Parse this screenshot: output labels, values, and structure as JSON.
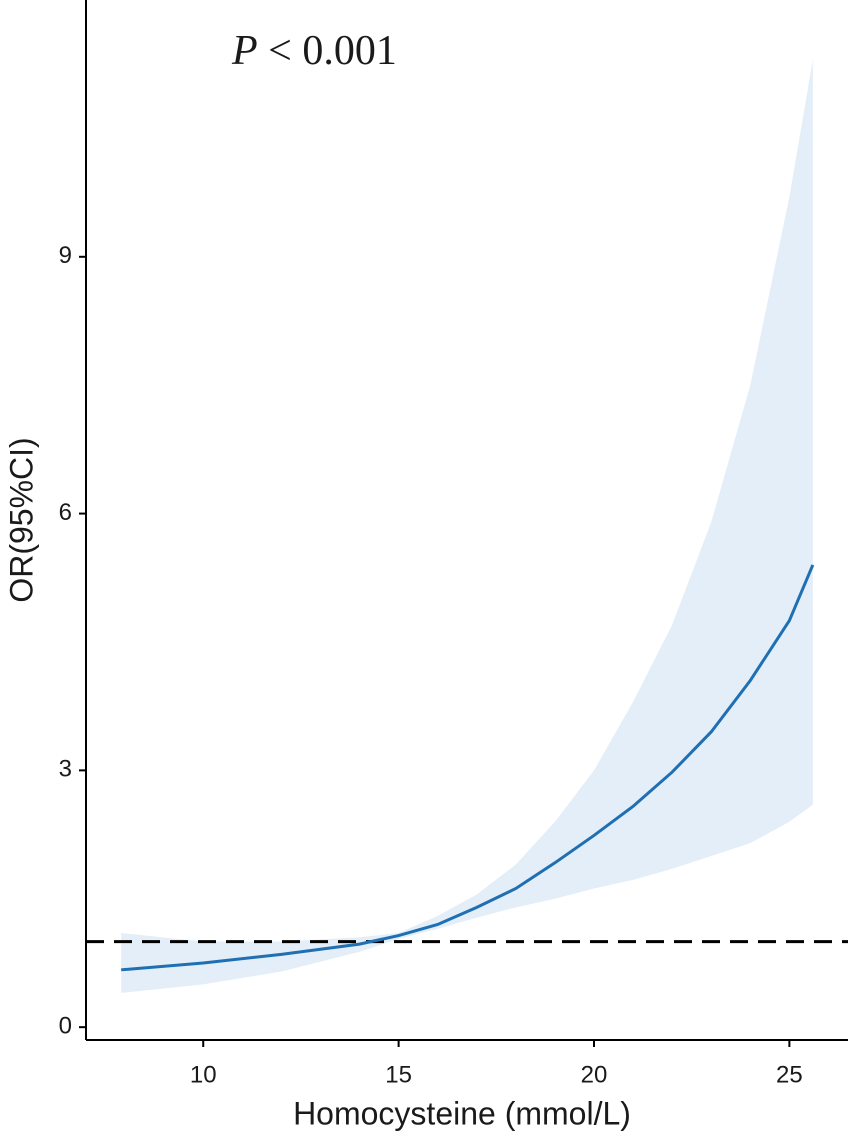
{
  "chart_data": {
    "type": "spline",
    "annotation": {
      "symbol": "P",
      "text": "< 0.001"
    },
    "x_label": "Homocysteine (mmol/L)",
    "y_label": "OR(95%CI)",
    "x": [
      7.9,
      10,
      12,
      14,
      15,
      16,
      17,
      18,
      19,
      20,
      21,
      22,
      23,
      24,
      25,
      25.6
    ],
    "series": [
      {
        "color": "#1f6fb2",
        "band_color": "#e3eef8",
        "values": [
          0.67,
          0.75,
          0.85,
          0.97,
          1.07,
          1.2,
          1.4,
          1.62,
          1.92,
          2.24,
          2.58,
          2.98,
          3.45,
          4.05,
          4.75,
          5.4
        ],
        "lower": [
          0.4,
          0.5,
          0.65,
          0.88,
          1.03,
          1.15,
          1.28,
          1.4,
          1.5,
          1.62,
          1.72,
          1.85,
          2.0,
          2.15,
          2.4,
          2.6
        ],
        "upper": [
          1.1,
          1.0,
          1.0,
          1.05,
          1.1,
          1.3,
          1.55,
          1.9,
          2.4,
          3.0,
          3.8,
          4.7,
          5.9,
          7.5,
          9.7,
          11.3
        ]
      }
    ],
    "reference_line": 1,
    "xlim": [
      7.0,
      26.5
    ],
    "ylim": [
      -0.15,
      12.0
    ],
    "xticks": [
      10,
      15,
      20,
      25
    ],
    "yticks": [
      0,
      3,
      6,
      9
    ]
  }
}
